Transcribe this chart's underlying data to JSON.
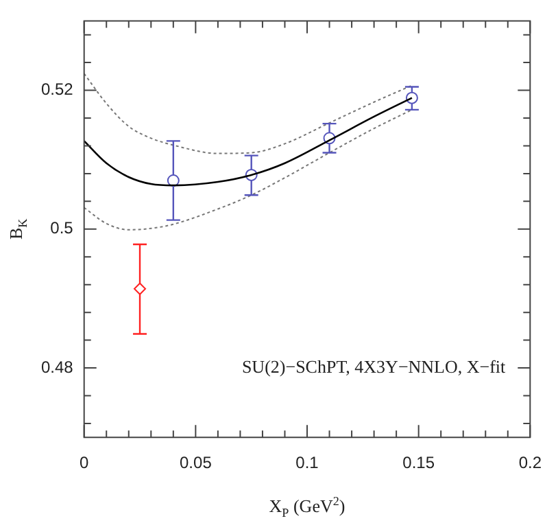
{
  "chart_data": {
    "type": "scatter",
    "xlabel": "X$_{P}$ (GeV$^{2}$)",
    "ylabel": "B$_{K}$",
    "annotations": [
      "SU(2)−SChPT, 4X3Y−NNLO, X−fit"
    ],
    "xlim": [
      0,
      0.2
    ],
    "xticks": [
      0,
      {
        "value": 0.01,
        "label": null
      },
      {
        "value": 0.02,
        "label": null
      },
      {
        "value": 0.03,
        "label": null
      },
      {
        "value": 0.04,
        "label": null
      },
      0.05,
      {
        "value": 0.06,
        "label": null
      },
      {
        "value": 0.07,
        "label": null
      },
      {
        "value": 0.08,
        "label": null
      },
      {
        "value": 0.09,
        "label": null
      },
      0.1,
      {
        "value": 0.11,
        "label": null
      },
      {
        "value": 0.12,
        "label": null
      },
      {
        "value": 0.13,
        "label": null
      },
      {
        "value": 0.14,
        "label": null
      },
      0.15,
      {
        "value": 0.16,
        "label": null
      },
      {
        "value": 0.17,
        "label": null
      },
      {
        "value": 0.18,
        "label": null
      },
      {
        "value": 0.19,
        "label": null
      },
      0.2
    ],
    "ylim": [
      0.47,
      0.53
    ],
    "yticks": [
      {
        "value": 0.472,
        "label": null
      },
      {
        "value": 0.476,
        "label": null
      },
      0.48,
      {
        "value": 0.484,
        "label": null
      },
      {
        "value": 0.488,
        "label": null
      },
      {
        "value": 0.492,
        "label": null
      },
      {
        "value": 0.496,
        "label": null
      },
      0.5,
      {
        "value": 0.504,
        "label": null
      },
      {
        "value": 0.508,
        "label": null
      },
      {
        "value": 0.512,
        "label": null
      },
      {
        "value": 0.516,
        "label": null
      },
      0.52,
      {
        "value": 0.524,
        "label": null
      },
      {
        "value": 0.528,
        "label": null
      }
    ],
    "grid": false,
    "series": [
      {
        "type": "line",
        "color": "#000000",
        "marker": "none",
        "line_style": "solid",
        "x": [
          0,
          0.01,
          0.02,
          0.03,
          0.04,
          0.06,
          0.075,
          0.09,
          0.11,
          0.13,
          0.147
        ],
        "values": [
          0.5127,
          0.5095,
          0.5075,
          0.5065,
          0.5063,
          0.5068,
          0.5078,
          0.5095,
          0.5128,
          0.5162,
          0.5189
        ]
      },
      {
        "type": "line",
        "color": "#777777",
        "marker": "none",
        "line_style": "dotted",
        "x": [
          0,
          0.01,
          0.02,
          0.03,
          0.04,
          0.06,
          0.075,
          0.09,
          0.11,
          0.13,
          0.147
        ],
        "values": [
          0.5031,
          0.5008,
          0.4999,
          0.5001,
          0.5007,
          0.5029,
          0.5049,
          0.5074,
          0.511,
          0.5145,
          0.5172
        ]
      },
      {
        "type": "line",
        "color": "#777777",
        "marker": "none",
        "line_style": "dotted",
        "x": [
          0,
          0.01,
          0.02,
          0.03,
          0.04,
          0.06,
          0.075,
          0.09,
          0.11,
          0.13,
          0.147
        ],
        "values": [
          0.5224,
          0.5181,
          0.5148,
          0.5131,
          0.5121,
          0.5109,
          0.511,
          0.5123,
          0.5153,
          0.5183,
          0.5207
        ]
      },
      {
        "color": "#5555bb",
        "marker": "circle",
        "x": [
          0.04,
          0.075,
          0.11,
          0.147
        ],
        "values": [
          0.507,
          0.5078,
          0.5131,
          0.5189
        ],
        "errors": [
          [
            0.5013,
            0.5127
          ],
          [
            0.5049,
            0.5106
          ],
          [
            0.511,
            0.5152
          ],
          [
            0.5172,
            0.5205
          ]
        ]
      },
      {
        "color": "#ff2222",
        "marker": "diamond",
        "x": [
          0.025
        ],
        "values": [
          0.4914
        ],
        "errors": [
          [
            0.4849,
            0.4978
          ]
        ]
      }
    ]
  }
}
